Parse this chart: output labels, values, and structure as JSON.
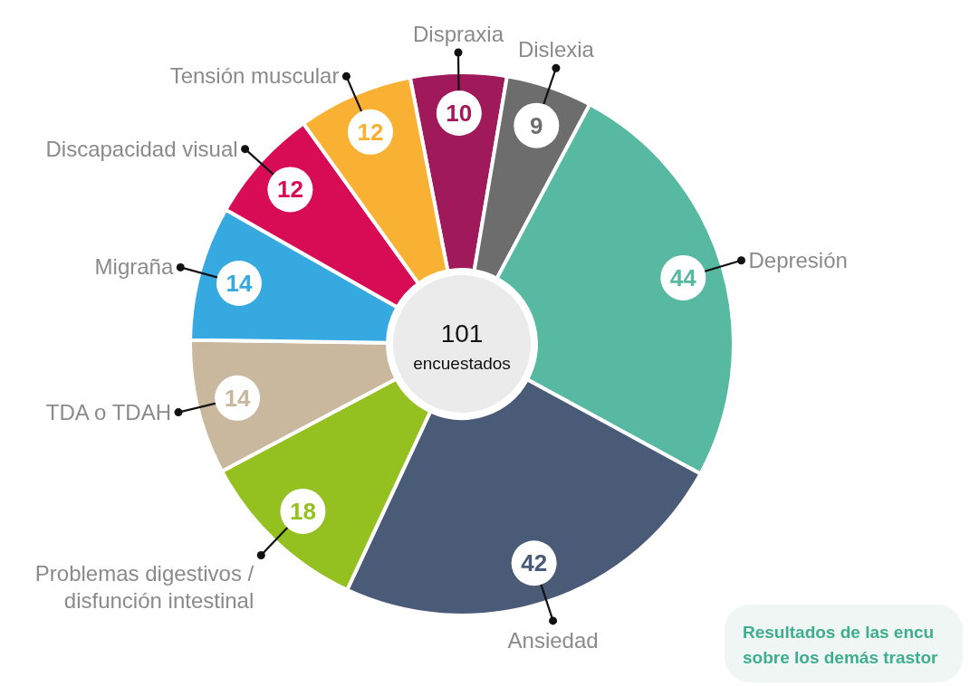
{
  "chart_data": {
    "type": "donut",
    "categories": [
      "Dispraxia",
      "Dislexia",
      "Depresión",
      "Ansiedad",
      "Problemas digestivos / disfunción intestinal",
      "TDA o TDAH",
      "Migraña",
      "Discapacidad visual",
      "Tensión muscular"
    ],
    "values": [
      10,
      9,
      44,
      42,
      18,
      14,
      14,
      12,
      12
    ],
    "colors": [
      "#a0195a",
      "#6d6d6d",
      "#57b9a2",
      "#4a5b78",
      "#94c11f",
      "#c9b89e",
      "#36a9e1",
      "#d70c54",
      "#f8b133"
    ],
    "data_labels": true,
    "legend": false,
    "annotations": [
      "101 encuestados",
      "Resultados de las encu",
      "sobre los demás trastor"
    ]
  }
}
